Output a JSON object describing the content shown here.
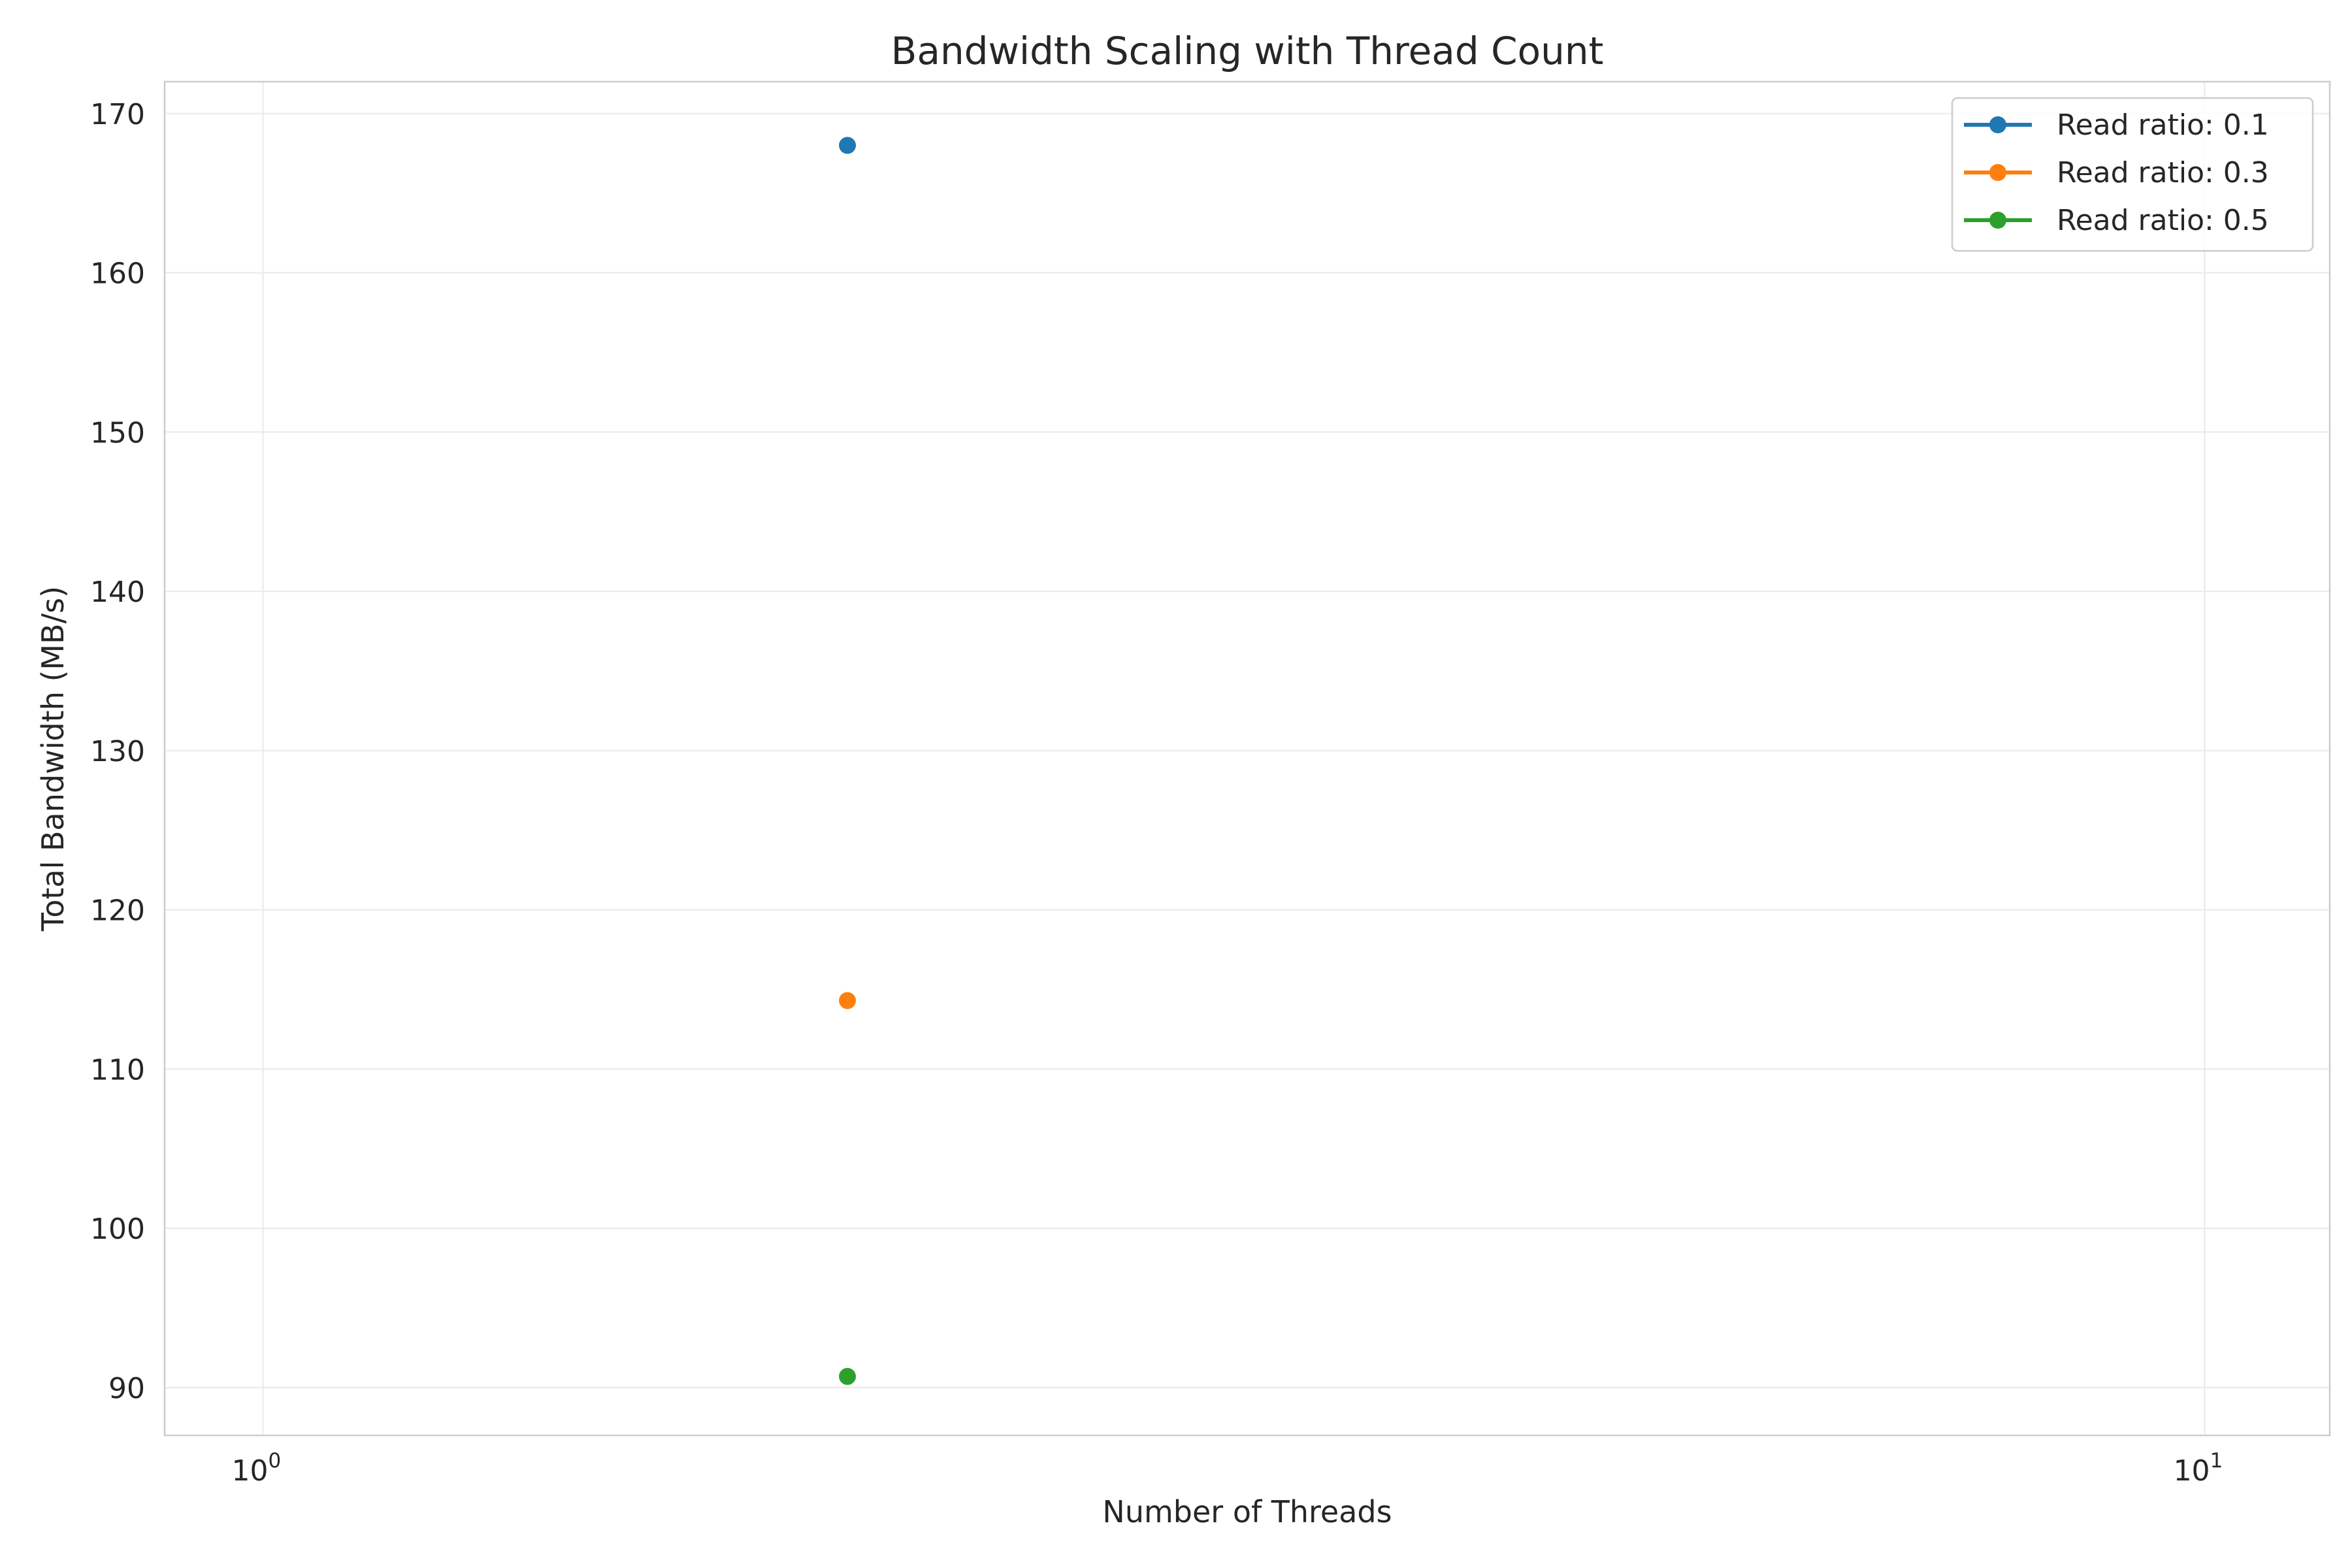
{
  "chart_data": {
    "type": "scatter",
    "title": "Bandwidth Scaling with Thread Count",
    "xlabel": "Number of Threads",
    "ylabel": "Total Bandwidth (MB/s)",
    "x_scale": "log",
    "xlim": [
      0.89,
      11.6
    ],
    "ylim": [
      87,
      172
    ],
    "x_ticks": [
      {
        "value": 1,
        "base": "10",
        "exp": "0"
      },
      {
        "value": 10,
        "base": "10",
        "exp": "1"
      }
    ],
    "y_ticks": [
      90,
      100,
      110,
      120,
      130,
      140,
      150,
      160,
      170
    ],
    "y_tick_labels": [
      "90",
      "100",
      "110",
      "120",
      "130",
      "140",
      "150",
      "160",
      "170"
    ],
    "grid": true,
    "legend_position": "top-right",
    "series": [
      {
        "name": "Read ratio: 0.1",
        "color": "#1f77b4",
        "points": [
          {
            "x": 2,
            "y": 168
          }
        ]
      },
      {
        "name": "Read ratio: 0.3",
        "color": "#ff7f0e",
        "points": [
          {
            "x": 2,
            "y": 114.3
          }
        ]
      },
      {
        "name": "Read ratio: 0.5",
        "color": "#2ca02c",
        "points": [
          {
            "x": 2,
            "y": 90.7
          }
        ]
      }
    ]
  }
}
